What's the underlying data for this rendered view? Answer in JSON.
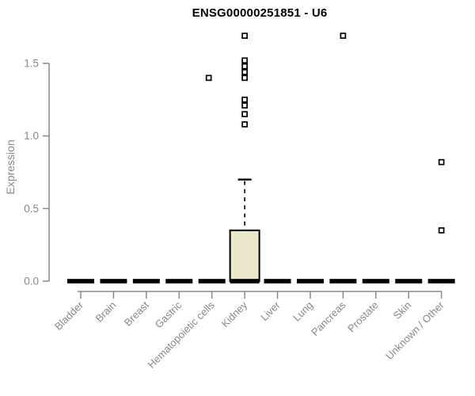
{
  "chart_data": {
    "type": "box",
    "title": "ENSG00000251851 - U6",
    "ylabel": "Expression",
    "xlabel": "",
    "ylim": [
      0,
      1.72
    ],
    "yticks": [
      0,
      0.5,
      1,
      1.5
    ],
    "ytick_labels": [
      "0.0",
      "0.5",
      "1.0",
      "1.5"
    ],
    "grid": false,
    "legend": null,
    "categories": [
      "Bladder",
      "Brain",
      "Breast",
      "Gastric",
      "Hematopoietic cells",
      "Kidney",
      "Liver",
      "Lung",
      "Pancreas",
      "Prostate",
      "Skin",
      "Unknown / Other"
    ],
    "boxes": [
      {
        "category": "Bladder",
        "q1": 0,
        "median": 0,
        "q3": 0,
        "whisker_low": 0,
        "whisker_high": 0,
        "outliers": []
      },
      {
        "category": "Brain",
        "q1": 0,
        "median": 0,
        "q3": 0,
        "whisker_low": 0,
        "whisker_high": 0,
        "outliers": []
      },
      {
        "category": "Breast",
        "q1": 0,
        "median": 0,
        "q3": 0,
        "whisker_low": 0,
        "whisker_high": 0,
        "outliers": []
      },
      {
        "category": "Gastric",
        "q1": 0,
        "median": 0,
        "q3": 0,
        "whisker_low": 0,
        "whisker_high": 0,
        "outliers": []
      },
      {
        "category": "Hematopoietic cells",
        "q1": 0,
        "median": 0,
        "q3": 0,
        "whisker_low": 0,
        "whisker_high": 0,
        "outliers": [
          1.4
        ],
        "outlier_x_offset": -4
      },
      {
        "category": "Kidney",
        "q1": 0,
        "median": 0,
        "q3": 0.35,
        "whisker_low": 0,
        "whisker_high": 0.7,
        "outliers": [
          1.69,
          1.52,
          1.48,
          1.44,
          1.4,
          1.25,
          1.21,
          1.15,
          1.08
        ]
      },
      {
        "category": "Liver",
        "q1": 0,
        "median": 0,
        "q3": 0,
        "whisker_low": 0,
        "whisker_high": 0,
        "outliers": []
      },
      {
        "category": "Lung",
        "q1": 0,
        "median": 0,
        "q3": 0,
        "whisker_low": 0,
        "whisker_high": 0,
        "outliers": []
      },
      {
        "category": "Pancreas",
        "q1": 0,
        "median": 0,
        "q3": 0,
        "whisker_low": 0,
        "whisker_high": 0,
        "outliers": [
          1.69
        ]
      },
      {
        "category": "Prostate",
        "q1": 0,
        "median": 0,
        "q3": 0,
        "whisker_low": 0,
        "whisker_high": 0,
        "outliers": []
      },
      {
        "category": "Skin",
        "q1": 0,
        "median": 0,
        "q3": 0,
        "whisker_low": 0,
        "whisker_high": 0,
        "outliers": []
      },
      {
        "category": "Unknown / Other",
        "q1": 0,
        "median": 0,
        "q3": 0,
        "whisker_low": 0,
        "whisker_high": 0,
        "outliers": [
          0.82,
          0.35
        ]
      }
    ],
    "colors": {
      "box_fill": "#ebe7cb",
      "box_border": "#000000",
      "median": "#000000",
      "whisker": "#000000",
      "outlier_border": "#000000",
      "outlier_fill": "#ffffff",
      "axis": "#888888",
      "tick_label": "#888888",
      "title": "#000000",
      "background": "#ffffff"
    }
  }
}
